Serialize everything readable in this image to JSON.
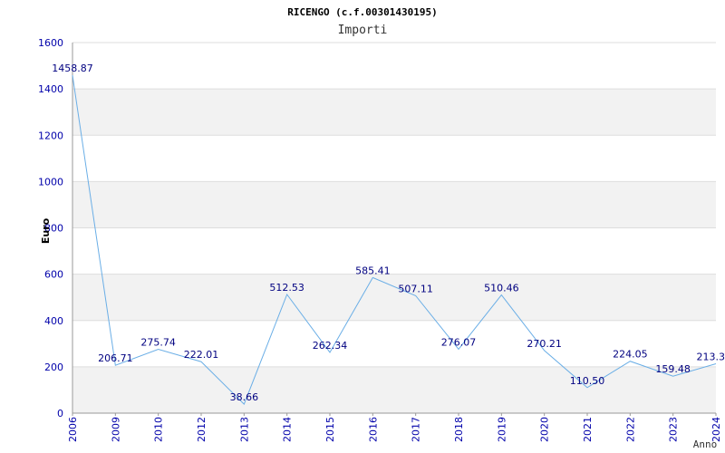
{
  "chart_data": {
    "type": "line",
    "title": "RICENGO (c.f.00301430195)",
    "subtitle": "Importi",
    "xlabel": "Anno",
    "ylabel": "Euro",
    "ylim": [
      0,
      1600
    ],
    "yticks": [
      "0",
      "200",
      "400",
      "600",
      "800",
      "1000",
      "1200",
      "1400",
      "1600"
    ],
    "grid": "horizontal bands",
    "categories": [
      "2006",
      "2009",
      "2010",
      "2012",
      "2013",
      "2014",
      "2015",
      "2016",
      "2017",
      "2018",
      "2019",
      "2020",
      "2021",
      "2022",
      "2023",
      "2024"
    ],
    "values": [
      1458.87,
      206.71,
      275.74,
      222.01,
      38.66,
      512.53,
      262.34,
      585.41,
      507.11,
      276.07,
      510.46,
      270.21,
      110.5,
      224.05,
      159.48,
      213.3
    ],
    "value_labels": [
      "1458.87",
      "206.71",
      "275.74",
      "222.01",
      "38.66",
      "512.53",
      "262.34",
      "585.41",
      "507.11",
      "276.07",
      "510.46",
      "270.21",
      "110.50",
      "224.05",
      "159.48",
      "213.3"
    ],
    "colors": {
      "line": "#6aaee6",
      "axis_text": "#0000aa",
      "band": "#f2f2f2",
      "grid": "#dddddd"
    }
  }
}
